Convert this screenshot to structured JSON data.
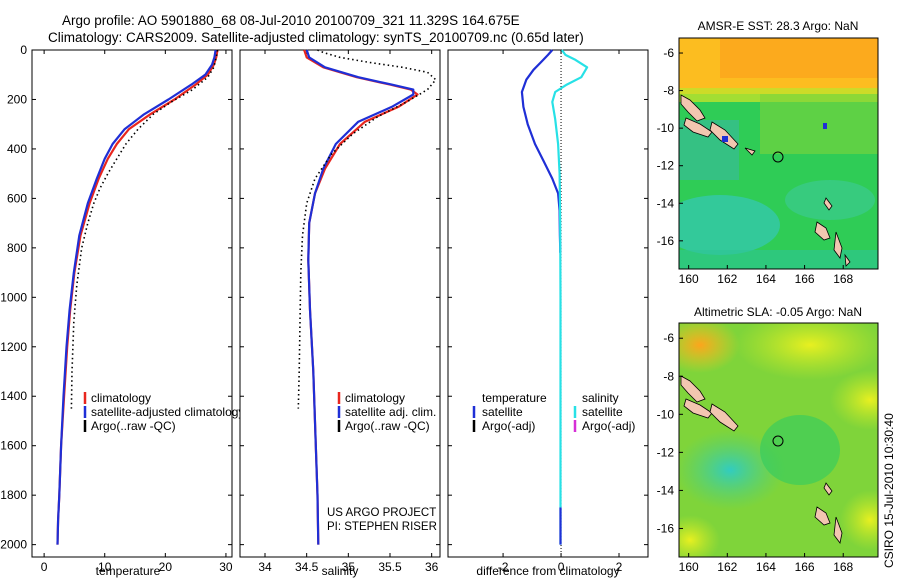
{
  "header": {
    "line1": "Argo profile: AO 5901880_68 08-Jul-2010 20100709_321 11.329S 164.675E",
    "line2": "Climatology: CARS2009. Satellite-adjusted climatology: synTS_20100709.nc (0.65d later)"
  },
  "side_note": "CSIRO 15-Jul-2010 10:30:40",
  "project": {
    "line1": "US ARGO PROJECT",
    "line2": "PI: STEPHEN RISER"
  },
  "colors": {
    "climatology": "#e8261e",
    "satellite": "#1f2fd6",
    "argo": "#000000",
    "salinity_satellite": "#27e1e6",
    "salinity_argo": "#d62fd6",
    "land": "#f2c6b0"
  },
  "chart_data": [
    {
      "type": "line",
      "id": "temperature",
      "xlabel": "temperature",
      "ylabel": "",
      "xlim": [
        -2,
        31
      ],
      "ylim": [
        2050,
        0
      ],
      "y_reversed": true,
      "xticks": [
        "0",
        "10",
        "20",
        "30"
      ],
      "xtick_values": [
        0,
        10,
        20,
        30
      ],
      "yticks": [
        "0",
        "200",
        "400",
        "600",
        "800",
        "1000",
        "1200",
        "1400",
        "1600",
        "1800",
        "2000"
      ],
      "ytick_values": [
        0,
        200,
        400,
        600,
        800,
        1000,
        1200,
        1400,
        1600,
        1800,
        2000
      ],
      "legend": [
        "climatology",
        "satellite-adjusted climatology",
        "Argo(..raw -QC)"
      ],
      "series": [
        {
          "name": "climatology",
          "style": "solid",
          "x": [
            28.6,
            28.4,
            28.0,
            27.0,
            25.0,
            21.5,
            17.5,
            14.0,
            12.0,
            10.5,
            9.0,
            7.5,
            6.0,
            5.0,
            4.3,
            3.8,
            3.3,
            2.8,
            2.5,
            2.3,
            2.2
          ],
          "y": [
            0,
            30,
            60,
            100,
            140,
            200,
            260,
            320,
            380,
            440,
            520,
            620,
            750,
            900,
            1050,
            1200,
            1400,
            1600,
            1800,
            1900,
            2000
          ]
        },
        {
          "name": "satellite-adjusted climatology",
          "style": "solid",
          "x": [
            28.3,
            28.1,
            27.7,
            26.6,
            24.3,
            20.5,
            16.5,
            13.3,
            11.3,
            10.0,
            8.7,
            7.2,
            5.8,
            4.9,
            4.2,
            3.7,
            3.2,
            2.8,
            2.5,
            2.3,
            2.2
          ],
          "y": [
            0,
            30,
            60,
            100,
            140,
            200,
            260,
            320,
            380,
            440,
            520,
            620,
            750,
            900,
            1050,
            1200,
            1400,
            1600,
            1800,
            1900,
            2000
          ]
        },
        {
          "name": "Argo(..raw -QC)",
          "style": "dotted",
          "x": [
            28.6,
            28.5,
            28.3,
            28.0,
            27.0,
            24.5,
            21.0,
            18.0,
            15.5,
            13.5,
            12.0,
            10.5,
            9.2,
            8.2,
            7.2,
            6.2,
            5.4,
            4.9,
            4.6,
            4.5
          ],
          "y": [
            0,
            20,
            40,
            70,
            110,
            160,
            210,
            260,
            320,
            380,
            440,
            500,
            560,
            620,
            700,
            800,
            950,
            1100,
            1300,
            1450
          ]
        }
      ]
    },
    {
      "type": "line",
      "id": "salinity",
      "xlabel": "salinity",
      "xlim": [
        33.7,
        36.1
      ],
      "ylim": [
        2050,
        0
      ],
      "y_reversed": true,
      "xticks": [
        "34",
        "34.5",
        "35",
        "35.5",
        "36"
      ],
      "xtick_values": [
        34,
        34.5,
        35,
        35.5,
        36
      ],
      "legend": [
        "climatology",
        "satellite adj. clim.",
        "Argo(..raw -QC)"
      ],
      "series": [
        {
          "name": "climatology",
          "style": "solid",
          "x": [
            34.47,
            34.5,
            34.7,
            35.1,
            35.5,
            35.75,
            35.83,
            35.6,
            35.2,
            34.9,
            34.72,
            34.6,
            34.53,
            34.52,
            34.54,
            34.58,
            34.61,
            34.63,
            34.64
          ],
          "y": [
            0,
            30,
            70,
            110,
            140,
            160,
            180,
            230,
            290,
            380,
            480,
            580,
            700,
            850,
            1050,
            1300,
            1600,
            1800,
            2000
          ]
        },
        {
          "name": "satellite adj. clim.",
          "style": "solid",
          "x": [
            34.5,
            34.53,
            34.72,
            35.12,
            35.52,
            35.78,
            35.78,
            35.52,
            35.12,
            34.85,
            34.7,
            34.6,
            34.53,
            34.52,
            34.54,
            34.58,
            34.61,
            34.63,
            34.64
          ],
          "y": [
            0,
            30,
            70,
            110,
            140,
            160,
            180,
            230,
            290,
            380,
            480,
            580,
            700,
            850,
            1050,
            1300,
            1600,
            1800,
            2000
          ]
        },
        {
          "name": "Argo(..raw -QC)",
          "style": "dotted",
          "x": [
            34.63,
            34.7,
            34.9,
            35.25,
            35.65,
            35.95,
            36.05,
            35.95,
            35.7,
            35.35,
            35.05,
            34.8,
            34.6,
            34.5,
            34.45,
            34.43,
            34.42,
            34.41,
            34.4
          ],
          "y": [
            0,
            10,
            30,
            50,
            70,
            90,
            120,
            160,
            210,
            270,
            340,
            420,
            520,
            620,
            750,
            900,
            1100,
            1300,
            1450
          ]
        }
      ]
    },
    {
      "type": "line",
      "id": "difference",
      "xlabel": "difference from climatology",
      "xlim": [
        -3.9,
        3.0
      ],
      "ylim": [
        2050,
        0
      ],
      "y_reversed": true,
      "xticks": [
        "-2",
        "0",
        "2"
      ],
      "xtick_values": [
        -2,
        0,
        2
      ],
      "zero_line": "dotted",
      "legend_headers": [
        "temperature",
        "salinity"
      ],
      "legend": [
        "satellite",
        "Argo(-adj)",
        "satellite",
        "Argo(-adj)"
      ],
      "series": [
        {
          "name": "temperature satellite",
          "style": "solid",
          "x": [
            -0.3,
            -0.45,
            -0.7,
            -0.95,
            -1.2,
            -1.35,
            -1.3,
            -1.15,
            -0.9,
            -0.6,
            -0.3,
            -0.1,
            -0.05,
            -0.04,
            -0.03,
            -0.03
          ],
          "y": [
            0,
            20,
            50,
            80,
            120,
            170,
            230,
            300,
            380,
            450,
            520,
            580,
            650,
            750,
            800,
            820
          ]
        },
        {
          "name": "salinity satellite",
          "style": "solid",
          "x": [
            0.03,
            0.15,
            0.5,
            0.9,
            0.7,
            0.2,
            -0.2,
            -0.3,
            -0.2,
            -0.1,
            -0.05,
            -0.03,
            -0.02,
            -0.02,
            -0.02,
            -0.02
          ],
          "y": [
            0,
            20,
            40,
            70,
            110,
            140,
            170,
            210,
            280,
            380,
            500,
            700,
            1000,
            1400,
            1800,
            2000
          ]
        },
        {
          "name": "temperature satellite deep",
          "style": "solid",
          "x": [
            -0.02,
            -0.02
          ],
          "y": [
            1850,
            2000
          ]
        }
      ]
    },
    {
      "type": "heatmap",
      "id": "sst_map",
      "title": "AMSR-E SST: 28.3 Argo: NaN",
      "xlim": [
        159.5,
        169.8
      ],
      "ylim": [
        -17.5,
        -5.2
      ],
      "xticks": [
        "160",
        "162",
        "164",
        "166",
        "168"
      ],
      "xtick_values": [
        160,
        162,
        164,
        166,
        168
      ],
      "yticks": [
        "-6",
        "-8",
        "-10",
        "-12",
        "-14",
        "-16"
      ],
      "ytick_values": [
        -6,
        -8,
        -10,
        -12,
        -14,
        -16
      ],
      "marker": {
        "lon": 164.675,
        "lat": -11.329
      }
    },
    {
      "type": "heatmap",
      "id": "sla_map",
      "title": "Altimetric SLA: -0.05 Argo: NaN",
      "xlim": [
        159.5,
        169.8
      ],
      "ylim": [
        -17.5,
        -5.2
      ],
      "xticks": [
        "160",
        "162",
        "164",
        "166",
        "168"
      ],
      "xtick_values": [
        160,
        162,
        164,
        166,
        168
      ],
      "yticks": [
        "-6",
        "-8",
        "-10",
        "-12",
        "-14",
        "-16"
      ],
      "ytick_values": [
        -6,
        -8,
        -10,
        -12,
        -14,
        -16
      ],
      "marker": {
        "lon": 164.675,
        "lat": -11.329
      }
    }
  ]
}
